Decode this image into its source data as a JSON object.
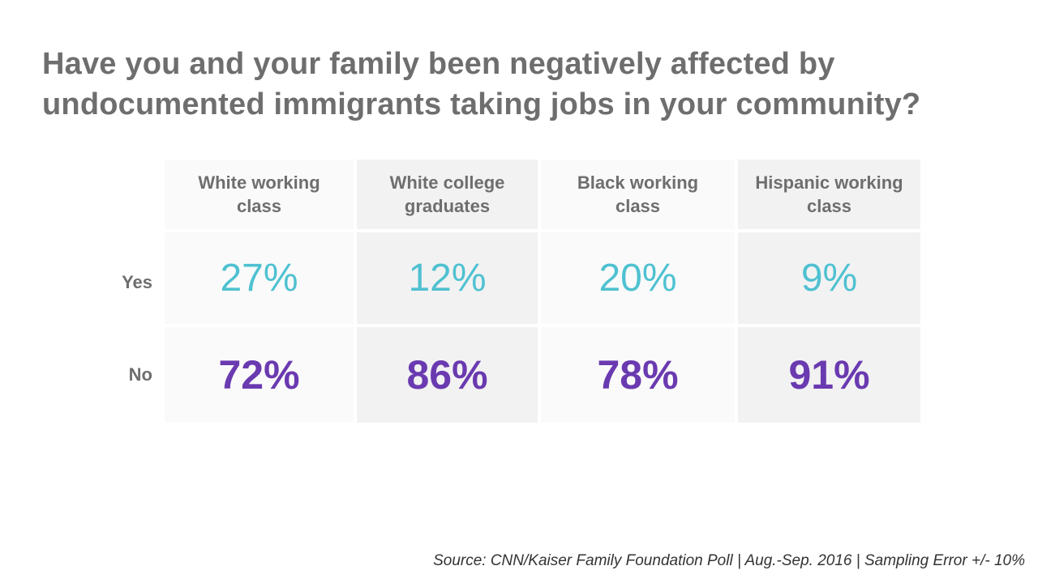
{
  "title_lines": [
    "Have you and your family been negatively affected by",
    "undocumented immigrants taking jobs in your community?"
  ],
  "colors": {
    "yes": "#4fc1d1",
    "no": "#6a3ab0",
    "text": "#6e6e6e"
  },
  "chart_data": {
    "type": "table",
    "title": "Have you and your family been negatively affected by undocumented immigrants taking jobs in your community?",
    "columns": [
      {
        "line1": "White working",
        "line2": "class"
      },
      {
        "line1": "White college",
        "line2": "graduates"
      },
      {
        "line1": "Black working",
        "line2": "class"
      },
      {
        "line1": "Hispanic working",
        "line2": "class"
      }
    ],
    "rows": [
      {
        "label": "Yes",
        "values": [
          "27%",
          "12%",
          "20%",
          "9%"
        ]
      },
      {
        "label": "No",
        "values": [
          "72%",
          "86%",
          "78%",
          "91%"
        ]
      }
    ]
  },
  "source": "Source: CNN/Kaiser Family Foundation Poll | Aug.-Sep. 2016 | Sampling Error +/- 10%"
}
